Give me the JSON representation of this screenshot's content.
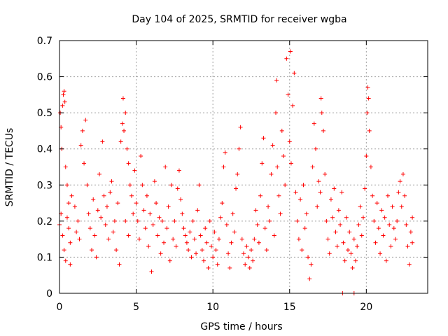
{
  "chart_data": {
    "type": "scatter",
    "title": "Day 104 of 2025, SRMTID for receiver wgba",
    "xlabel": "GPS time / hours",
    "ylabel": "SRMTID / TECUs",
    "xlim": [
      0,
      24
    ],
    "ylim": [
      0,
      0.7
    ],
    "x_ticks": [
      0,
      5,
      10,
      15,
      20
    ],
    "x_tick_labels": [
      "0",
      "5",
      "10",
      "15",
      "20"
    ],
    "y_ticks": [
      0,
      0.1,
      0.2,
      0.3,
      0.4,
      0.5,
      0.6,
      0.7
    ],
    "y_tick_labels": [
      "0",
      "0.1",
      "0.2",
      "0.3",
      "0.4",
      "0.5",
      "0.6",
      "0.7"
    ],
    "grid": true,
    "marker": "+",
    "color": "#ff0000",
    "series": [
      {
        "name": "SRMTID",
        "points": [
          [
            0.05,
            0.5
          ],
          [
            0.1,
            0.46
          ],
          [
            0.15,
            0.4
          ],
          [
            0.2,
            0.52
          ],
          [
            0.25,
            0.55
          ],
          [
            0.3,
            0.56
          ],
          [
            0.35,
            0.53
          ],
          [
            0.4,
            0.35
          ],
          [
            0.5,
            0.3
          ],
          [
            0.6,
            0.25
          ],
          [
            0.0,
            0.19
          ],
          [
            0.1,
            0.22
          ],
          [
            0.2,
            0.16
          ],
          [
            0.3,
            0.12
          ],
          [
            0.4,
            0.09
          ],
          [
            0.5,
            0.21
          ],
          [
            0.6,
            0.18
          ],
          [
            0.7,
            0.14
          ],
          [
            0.8,
            0.27
          ],
          [
            0.7,
            0.08
          ],
          [
            1.0,
            0.24
          ],
          [
            1.1,
            0.17
          ],
          [
            1.2,
            0.2
          ],
          [
            1.3,
            0.15
          ],
          [
            1.4,
            0.41
          ],
          [
            1.5,
            0.45
          ],
          [
            1.6,
            0.36
          ],
          [
            1.7,
            0.48
          ],
          [
            1.8,
            0.3
          ],
          [
            1.9,
            0.22
          ],
          [
            2.0,
            0.18
          ],
          [
            2.1,
            0.12
          ],
          [
            2.2,
            0.26
          ],
          [
            2.3,
            0.16
          ],
          [
            2.4,
            0.1
          ],
          [
            2.5,
            0.23
          ],
          [
            2.6,
            0.33
          ],
          [
            2.7,
            0.21
          ],
          [
            2.8,
            0.42
          ],
          [
            2.9,
            0.27
          ],
          [
            3.0,
            0.19
          ],
          [
            3.1,
            0.24
          ],
          [
            3.2,
            0.15
          ],
          [
            3.3,
            0.28
          ],
          [
            3.4,
            0.31
          ],
          [
            3.5,
            0.17
          ],
          [
            3.6,
            0.2
          ],
          [
            3.7,
            0.12
          ],
          [
            3.8,
            0.25
          ],
          [
            3.9,
            0.08
          ],
          [
            4.0,
            0.42
          ],
          [
            4.1,
            0.47
          ],
          [
            4.15,
            0.54
          ],
          [
            4.2,
            0.45
          ],
          [
            4.3,
            0.5
          ],
          [
            4.4,
            0.4
          ],
          [
            4.5,
            0.36
          ],
          [
            4.6,
            0.3
          ],
          [
            4.7,
            0.27
          ],
          [
            4.8,
            0.22
          ],
          [
            4.3,
            0.2
          ],
          [
            4.5,
            0.16
          ],
          [
            4.9,
            0.34
          ],
          [
            5.0,
            0.25
          ],
          [
            5.1,
            0.2
          ],
          [
            5.2,
            0.15
          ],
          [
            5.3,
            0.38
          ],
          [
            5.4,
            0.3
          ],
          [
            5.5,
            0.23
          ],
          [
            5.6,
            0.18
          ],
          [
            5.7,
            0.27
          ],
          [
            5.8,
            0.13
          ],
          [
            5.9,
            0.22
          ],
          [
            6.0,
            0.06
          ],
          [
            6.1,
            0.19
          ],
          [
            6.2,
            0.31
          ],
          [
            6.3,
            0.25
          ],
          [
            6.4,
            0.16
          ],
          [
            6.5,
            0.21
          ],
          [
            6.6,
            0.11
          ],
          [
            6.7,
            0.2
          ],
          [
            6.8,
            0.14
          ],
          [
            6.9,
            0.35
          ],
          [
            7.0,
            0.18
          ],
          [
            7.1,
            0.24
          ],
          [
            7.2,
            0.09
          ],
          [
            7.3,
            0.3
          ],
          [
            7.4,
            0.15
          ],
          [
            7.5,
            0.2
          ],
          [
            7.6,
            0.13
          ],
          [
            7.7,
            0.29
          ],
          [
            7.8,
            0.34
          ],
          [
            7.9,
            0.26
          ],
          [
            8.0,
            0.22
          ],
          [
            8.1,
            0.18
          ],
          [
            8.2,
            0.16
          ],
          [
            8.3,
            0.14
          ],
          [
            8.4,
            0.12
          ],
          [
            8.5,
            0.17
          ],
          [
            8.6,
            0.1
          ],
          [
            8.7,
            0.2
          ],
          [
            8.8,
            0.15
          ],
          [
            8.9,
            0.11
          ],
          [
            9.0,
            0.23
          ],
          [
            9.1,
            0.3
          ],
          [
            9.2,
            0.16
          ],
          [
            9.3,
            0.12
          ],
          [
            9.4,
            0.09
          ],
          [
            9.5,
            0.18
          ],
          [
            9.6,
            0.14
          ],
          [
            9.7,
            0.07
          ],
          [
            9.8,
            0.2
          ],
          [
            9.9,
            0.13
          ],
          [
            10.0,
            0.1
          ],
          [
            10.1,
            0.17
          ],
          [
            10.2,
            0.12
          ],
          [
            10.3,
            0.08
          ],
          [
            10.4,
            0.15
          ],
          [
            10.5,
            0.21
          ],
          [
            10.6,
            0.25
          ],
          [
            10.7,
            0.35
          ],
          [
            10.8,
            0.39
          ],
          [
            10.9,
            0.19
          ],
          [
            11.0,
            0.11
          ],
          [
            11.1,
            0.07
          ],
          [
            11.2,
            0.14
          ],
          [
            11.3,
            0.22
          ],
          [
            11.4,
            0.17
          ],
          [
            11.5,
            0.29
          ],
          [
            11.6,
            0.33
          ],
          [
            11.7,
            0.4
          ],
          [
            11.8,
            0.46
          ],
          [
            11.9,
            0.15
          ],
          [
            12.0,
            0.11
          ],
          [
            12.1,
            0.08
          ],
          [
            12.2,
            0.13
          ],
          [
            12.3,
            0.1
          ],
          [
            12.4,
            0.07
          ],
          [
            12.5,
            0.12
          ],
          [
            12.6,
            0.09
          ],
          [
            12.7,
            0.15
          ],
          [
            12.8,
            0.23
          ],
          [
            12.9,
            0.19
          ],
          [
            13.0,
            0.14
          ],
          [
            13.1,
            0.27
          ],
          [
            13.2,
            0.36
          ],
          [
            13.3,
            0.43
          ],
          [
            13.4,
            0.18
          ],
          [
            13.5,
            0.12
          ],
          [
            13.6,
            0.24
          ],
          [
            13.7,
            0.2
          ],
          [
            13.8,
            0.33
          ],
          [
            13.9,
            0.41
          ],
          [
            14.0,
            0.16
          ],
          [
            14.1,
            0.5
          ],
          [
            14.15,
            0.59
          ],
          [
            14.2,
            0.35
          ],
          [
            14.3,
            0.27
          ],
          [
            14.4,
            0.22
          ],
          [
            14.5,
            0.45
          ],
          [
            14.6,
            0.38
          ],
          [
            14.7,
            0.3
          ],
          [
            14.8,
            0.65
          ],
          [
            14.9,
            0.55
          ],
          [
            15.0,
            0.42
          ],
          [
            15.05,
            0.67
          ],
          [
            15.1,
            0.36
          ],
          [
            15.2,
            0.52
          ],
          [
            15.3,
            0.61
          ],
          [
            15.4,
            0.28
          ],
          [
            15.5,
            0.2
          ],
          [
            15.6,
            0.15
          ],
          [
            15.7,
            0.26
          ],
          [
            15.8,
            0.12
          ],
          [
            15.9,
            0.3
          ],
          [
            16.0,
            0.18
          ],
          [
            16.1,
            0.22
          ],
          [
            16.2,
            0.1
          ],
          [
            16.3,
            0.04
          ],
          [
            16.4,
            0.08
          ],
          [
            16.5,
            0.35
          ],
          [
            16.6,
            0.47
          ],
          [
            16.7,
            0.4
          ],
          [
            16.8,
            0.24
          ],
          [
            16.9,
            0.31
          ],
          [
            17.0,
            0.28
          ],
          [
            17.05,
            0.54
          ],
          [
            17.1,
            0.5
          ],
          [
            17.2,
            0.45
          ],
          [
            17.3,
            0.33
          ],
          [
            17.4,
            0.2
          ],
          [
            17.5,
            0.15
          ],
          [
            17.6,
            0.11
          ],
          [
            17.7,
            0.26
          ],
          [
            17.8,
            0.21
          ],
          [
            17.9,
            0.29
          ],
          [
            18.0,
            0.17
          ],
          [
            18.1,
            0.13
          ],
          [
            18.2,
            0.23
          ],
          [
            18.3,
            0.19
          ],
          [
            18.4,
            0.28
          ],
          [
            18.5,
            0.14
          ],
          [
            18.6,
            0.09
          ],
          [
            18.7,
            0.21
          ],
          [
            18.8,
            0.12
          ],
          [
            18.9,
            0.17
          ],
          [
            19.0,
            0.11
          ],
          [
            19.1,
            0.07
          ],
          [
            19.2,
            0.15
          ],
          [
            19.3,
            0.09
          ],
          [
            19.4,
            0.13
          ],
          [
            19.5,
            0.19
          ],
          [
            19.6,
            0.24
          ],
          [
            19.7,
            0.16
          ],
          [
            19.8,
            0.21
          ],
          [
            19.9,
            0.29
          ],
          [
            20.0,
            0.38
          ],
          [
            20.05,
            0.5
          ],
          [
            20.1,
            0.57
          ],
          [
            20.15,
            0.54
          ],
          [
            20.2,
            0.45
          ],
          [
            20.3,
            0.35
          ],
          [
            20.4,
            0.27
          ],
          [
            20.5,
            0.2
          ],
          [
            20.6,
            0.14
          ],
          [
            20.7,
            0.25
          ],
          [
            20.8,
            0.18
          ],
          [
            20.9,
            0.11
          ],
          [
            21.0,
            0.23
          ],
          [
            21.1,
            0.16
          ],
          [
            21.2,
            0.21
          ],
          [
            21.3,
            0.09
          ],
          [
            21.4,
            0.27
          ],
          [
            21.5,
            0.19
          ],
          [
            21.6,
            0.13
          ],
          [
            21.7,
            0.24
          ],
          [
            21.8,
            0.18
          ],
          [
            21.9,
            0.15
          ],
          [
            22.0,
            0.2
          ],
          [
            22.1,
            0.28
          ],
          [
            22.2,
            0.31
          ],
          [
            22.3,
            0.24
          ],
          [
            22.4,
            0.33
          ],
          [
            22.5,
            0.27
          ],
          [
            22.6,
            0.19
          ],
          [
            22.7,
            0.13
          ],
          [
            22.8,
            0.08
          ],
          [
            22.9,
            0.17
          ],
          [
            23.0,
            0.21
          ],
          [
            23.0,
            0.14
          ],
          [
            18.45,
            0.0
          ],
          [
            19.2,
            0.0
          ]
        ]
      }
    ]
  }
}
